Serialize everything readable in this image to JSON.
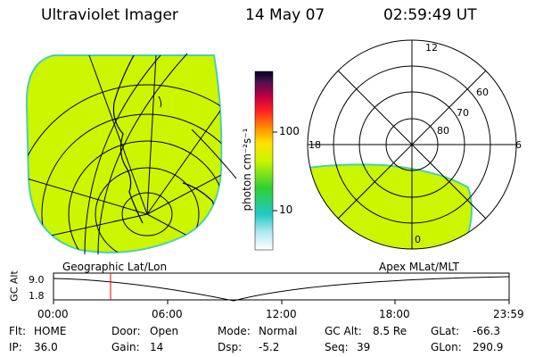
{
  "header": {
    "title": "Ultraviolet Imager",
    "date": "14 May 07",
    "time": "02:59:49 UT"
  },
  "colorbar": {
    "unit_label": "photon cm⁻²s⁻¹",
    "ticks": [
      "100",
      "10"
    ]
  },
  "panels": {
    "left_caption": "Geographic Lat/Lon",
    "right_caption": "Apex MLat/MLT",
    "polar_mlt_labels": [
      "12",
      "18",
      "6",
      "0"
    ],
    "polar_lat_labels": [
      "60",
      "70",
      "80"
    ]
  },
  "altitude_plot": {
    "ylabel": "GC Alt",
    "yticks": [
      "9.0",
      "1.8"
    ],
    "xticks": [
      "00:00",
      "06:00",
      "12:00",
      "18:00",
      "23:59"
    ]
  },
  "status": {
    "flt_label": "Flt:",
    "flt_value": "HOME",
    "ip_label": "IP:",
    "ip_value": "36.0",
    "door_label": "Door:",
    "door_value": "Open",
    "gain_label": "Gain:",
    "gain_value": "14",
    "mode_label": "Mode:",
    "mode_value": "Normal",
    "dsp_label": "Dsp:",
    "dsp_value": "-5.2",
    "gcalt_label": "GC Alt:",
    "gcalt_value": "8.5 Re",
    "seq_label": "Seq:",
    "seq_value": "39",
    "glat_label": "GLat:",
    "glat_value": "-66.3",
    "glon_label": "GLon:",
    "glon_value": "290.9"
  },
  "colors": {
    "emission": "#ccf500",
    "emission_edge": "#49d0b0"
  }
}
